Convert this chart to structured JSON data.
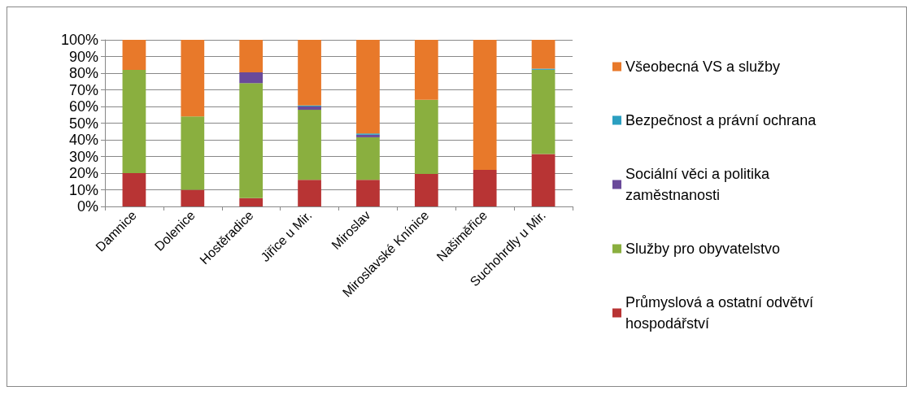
{
  "chart_data": {
    "type": "bar",
    "stacked": true,
    "categories": [
      "Damnice",
      "Dolenice",
      "Hostěradice",
      "Jiřice u Mir.",
      "Miroslav",
      "Miroslavské Knínice",
      "Našiměřice",
      "Suchohrdly u Mir."
    ],
    "series": [
      {
        "name": "Průmyslová a ostatní odvětví hospodářství",
        "color": "#b83434",
        "values": [
          20,
          10,
          5,
          16,
          16,
          19.5,
          22,
          31.5
        ]
      },
      {
        "name": "Služby pro obyvatelstvo",
        "color": "#8aaf3f",
        "values": [
          62,
          44,
          69,
          42,
          25.5,
          44.5,
          0,
          50.5
        ]
      },
      {
        "name": "Sociální věci a politika zaměstnanosti",
        "color": "#6a4a9a",
        "values": [
          0,
          0,
          6.5,
          2,
          1.5,
          0,
          0,
          0
        ]
      },
      {
        "name": "Bezpečnost a právní ochrana",
        "color": "#2b9fc0",
        "values": [
          0,
          0,
          0,
          0.6,
          0.8,
          0,
          0,
          0.7
        ]
      },
      {
        "name": "Všeobecná VS a služby",
        "color": "#e8792a",
        "values": [
          18,
          46,
          19.5,
          39.4,
          56.2,
          36,
          78,
          17.3
        ]
      }
    ],
    "ylim": [
      0,
      100
    ],
    "yticks": [
      {
        "value": 0,
        "label": "0%"
      },
      {
        "value": 10,
        "label": "10%"
      },
      {
        "value": 20,
        "label": "20%"
      },
      {
        "value": 30,
        "label": "30%"
      },
      {
        "value": 40,
        "label": "40%"
      },
      {
        "value": 50,
        "label": "50%"
      },
      {
        "value": 60,
        "label": "60%"
      },
      {
        "value": 70,
        "label": "70%"
      },
      {
        "value": 80,
        "label": "80%"
      },
      {
        "value": 90,
        "label": "90%"
      },
      {
        "value": 100,
        "label": "100%"
      }
    ],
    "grid": "y",
    "legend": "right"
  }
}
